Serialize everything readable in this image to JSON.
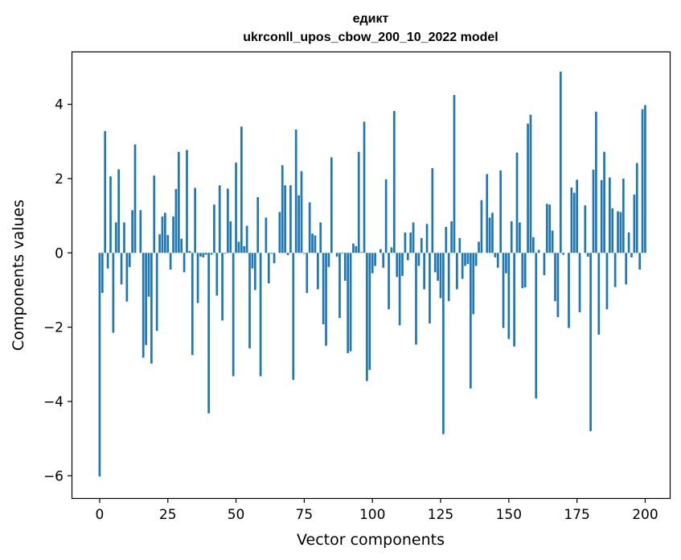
{
  "chart_data": {
    "type": "bar",
    "title_line1": "едикт",
    "title_line2": "ukrconll_upos_cbow_200_10_2022 model",
    "xlabel": "Vector components",
    "ylabel": "Components values",
    "xlim": [
      -10,
      209
    ],
    "ylim": [
      -6.6,
      5.4
    ],
    "xticks": [
      0,
      25,
      50,
      75,
      100,
      125,
      150,
      175,
      200
    ],
    "yticks": [
      -6,
      -4,
      -2,
      0,
      2,
      4
    ],
    "bar_color": "#1f77b4",
    "grid": false,
    "values": [
      -6.02,
      -1.08,
      3.28,
      -0.42,
      2.06,
      -2.15,
      0.82,
      2.25,
      -0.85,
      0.82,
      -1.31,
      -0.38,
      1.15,
      2.92,
      0.0,
      1.15,
      -2.82,
      -2.48,
      -1.18,
      -2.98,
      2.08,
      -2.1,
      0.5,
      0.98,
      1.08,
      0.48,
      -0.45,
      0.98,
      1.72,
      2.72,
      0.38,
      -0.52,
      2.77,
      0.05,
      -2.75,
      1.75,
      -1.35,
      -0.1,
      -0.12,
      -0.05,
      -4.32,
      -0.05,
      1.3,
      -1.15,
      1.82,
      -1.82,
      -0.02,
      1.73,
      0.85,
      -3.32,
      2.43,
      0.3,
      3.4,
      0.18,
      0.73,
      -2.57,
      -0.42,
      -1.0,
      1.5,
      -3.32,
      0.0,
      0.95,
      -0.82,
      -0.02,
      -0.28,
      0.0,
      1.1,
      2.36,
      1.82,
      -0.06,
      1.82,
      -3.42,
      3.32,
      1.55,
      2.2,
      -0.02,
      -1.08,
      1.36,
      0.52,
      0.47,
      -0.98,
      0.82,
      -1.92,
      -2.5,
      -0.38,
      2.57,
      0.0,
      -0.1,
      -1.75,
      -0.02,
      -0.75,
      -2.7,
      -2.65,
      0.25,
      0.18,
      2.72,
      0.02,
      3.53,
      -3.45,
      -3.15,
      -0.55,
      -0.35,
      0.0,
      0.1,
      -0.4,
      1.98,
      -1.52,
      0.15,
      3.82,
      -0.65,
      -1.95,
      -0.62,
      0.55,
      -0.2,
      0.55,
      0.82,
      -2.47,
      -0.35,
      0.4,
      -0.98,
      0.78,
      -1.9,
      2.28,
      -0.52,
      -0.75,
      -1.22,
      -4.88,
      0.7,
      -1.3,
      0.85,
      4.25,
      -0.98,
      0.4,
      -0.7,
      -0.35,
      -0.3,
      -3.65,
      -1.65,
      -0.35,
      0.3,
      1.42,
      0.0,
      2.12,
      0.95,
      1.08,
      -0.12,
      -0.4,
      2.22,
      -2.02,
      -0.55,
      -2.32,
      0.85,
      -2.52,
      2.7,
      0.82,
      -0.95,
      -0.93,
      3.48,
      3.72,
      0.42,
      -3.92,
      0.08,
      0.0,
      -0.6,
      1.32,
      1.3,
      0.6,
      -1.3,
      -1.73,
      4.88,
      -0.05,
      0.0,
      -2.02,
      1.76,
      1.62,
      1.97,
      -1.6,
      0.0,
      1.28,
      -0.1,
      -4.8,
      2.24,
      3.8,
      -2.2,
      1.96,
      2.72,
      -1.52,
      2.03,
      1.2,
      -0.92,
      1.12,
      1.1,
      2.0,
      -0.85,
      0.55,
      -0.12,
      1.57,
      2.42,
      -0.45,
      3.87,
      3.98
    ]
  }
}
